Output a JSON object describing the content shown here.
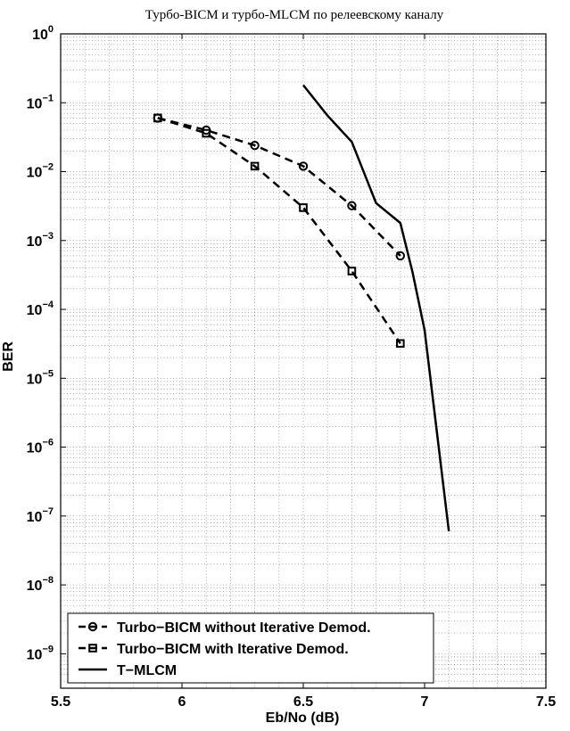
{
  "chart_data": {
    "type": "line",
    "title": "Турбо-BICM и турбо-MLCM по релеевскому каналу",
    "xlabel": "Eb/No (dB)",
    "ylabel": "BER",
    "xlim": [
      5.5,
      7.5
    ],
    "ylim_log10": [
      -9.5,
      0
    ],
    "y_scale": "log",
    "grid": true,
    "x_ticks": [
      {
        "value": 5.5,
        "label": "5.5"
      },
      {
        "value": 6,
        "label": "6"
      },
      {
        "value": 6.5,
        "label": "6.5"
      },
      {
        "value": 7,
        "label": "7"
      },
      {
        "value": 7.5,
        "label": "7.5"
      }
    ],
    "y_ticks": [
      {
        "exp": 0,
        "base": "10",
        "sup": "0"
      },
      {
        "exp": -1,
        "base": "10",
        "sup": "−1"
      },
      {
        "exp": -2,
        "base": "10",
        "sup": "−2"
      },
      {
        "exp": -3,
        "base": "10",
        "sup": "−3"
      },
      {
        "exp": -4,
        "base": "10",
        "sup": "−4"
      },
      {
        "exp": -5,
        "base": "10",
        "sup": "−5"
      },
      {
        "exp": -6,
        "base": "10",
        "sup": "−6"
      },
      {
        "exp": -7,
        "base": "10",
        "sup": "−7"
      },
      {
        "exp": -8,
        "base": "10",
        "sup": "−8"
      },
      {
        "exp": -9,
        "base": "10",
        "sup": "−9"
      }
    ],
    "legend_position": "bottom-left",
    "series": [
      {
        "name": "Turbo−BICM without Iterative Demod.",
        "style": "dashed",
        "marker": "circle",
        "x": [
          5.9,
          6.1,
          6.3,
          6.5,
          6.7,
          6.9
        ],
        "y": [
          0.06,
          0.04,
          0.024,
          0.012,
          0.0032,
          0.0006
        ]
      },
      {
        "name": "Turbo−BICM with Iterative Demod.",
        "style": "dashed",
        "marker": "square",
        "x": [
          5.9,
          6.1,
          6.3,
          6.5,
          6.7,
          6.9
        ],
        "y": [
          0.06,
          0.036,
          0.012,
          0.003,
          0.00036,
          3.2e-05
        ]
      },
      {
        "name": "T−MLCM",
        "style": "solid",
        "marker": "none",
        "x": [
          6.5,
          6.6,
          6.7,
          6.8,
          6.9,
          6.95,
          7.0,
          7.1
        ],
        "y": [
          0.18,
          0.065,
          0.027,
          0.0035,
          0.0018,
          0.00035,
          5e-05,
          6e-08
        ]
      }
    ]
  }
}
